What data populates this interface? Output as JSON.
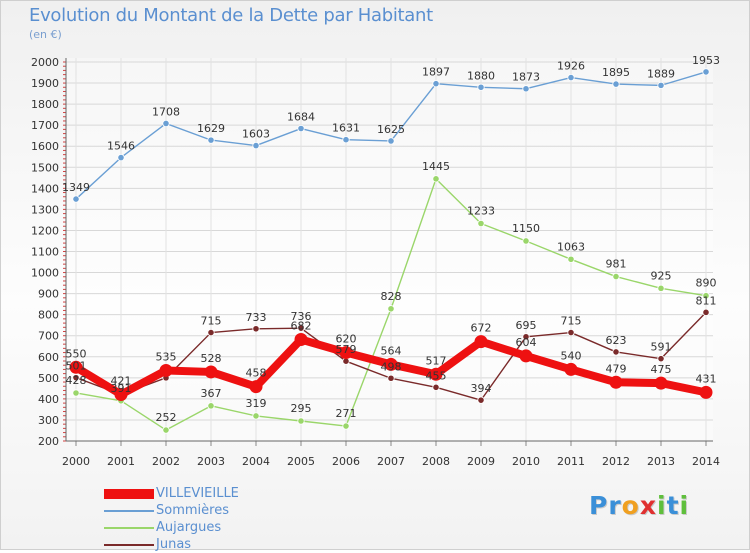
{
  "title": "Evolution du Montant de la Dette par Habitant",
  "subtitle": "(en €)",
  "logo": {
    "letters": [
      {
        "ch": "P",
        "color": "#3a8fd8"
      },
      {
        "ch": "r",
        "color": "#3a8fd8"
      },
      {
        "ch": "o",
        "color": "#f0a020"
      },
      {
        "ch": "x",
        "color": "#e03030"
      },
      {
        "ch": "i",
        "color": "#5fbf3c"
      },
      {
        "ch": "t",
        "color": "#3a8fd8"
      },
      {
        "ch": "i",
        "color": "#5fbf3c"
      }
    ]
  },
  "chart_data": {
    "type": "line",
    "title": "Evolution du Montant de la Dette par Habitant",
    "subtitle": "(en €)",
    "x": [
      "2000",
      "2001",
      "2002",
      "2003",
      "2004",
      "2005",
      "2006",
      "2007",
      "2008",
      "2009",
      "2010",
      "2011",
      "2012",
      "2013",
      "2014"
    ],
    "ylim": [
      200,
      2000
    ],
    "yticks": [
      200,
      300,
      400,
      500,
      600,
      700,
      800,
      900,
      1000,
      1100,
      1200,
      1300,
      1400,
      1500,
      1600,
      1700,
      1800,
      1900,
      2000
    ],
    "grid": true,
    "legend_position": "bottom-left",
    "series": [
      {
        "name": "VILLEVIEILLE",
        "color": "#ee1111",
        "values": [
          550,
          421,
          535,
          528,
          458,
          682,
          620,
          564,
          517,
          672,
          604,
          540,
          479,
          475,
          431
        ],
        "labels": [
          "550",
          "421",
          "535",
          "528",
          "458",
          "682",
          "620",
          "564",
          "517",
          "672",
          "604",
          "540",
          "479",
          "475",
          "431"
        ]
      },
      {
        "name": "Sommières",
        "color": "#6a9fd4",
        "values": [
          1349,
          1546,
          1708,
          1629,
          1603,
          1684,
          1631,
          1625,
          1897,
          1880,
          1873,
          1926,
          1895,
          1889,
          1953
        ],
        "labels": [
          "1349",
          "1546",
          "1708",
          "1629",
          "1603",
          "1684",
          "1631",
          "1625",
          "1897",
          "1880",
          "1873",
          "1926",
          "1895",
          "1889",
          "1953"
        ]
      },
      {
        "name": "Aujargues",
        "color": "#9ad66a",
        "values": [
          428,
          391,
          252,
          367,
          319,
          295,
          271,
          828,
          1445,
          1233,
          1150,
          1063,
          981,
          925,
          890
        ],
        "labels": [
          "428",
          "391",
          "252",
          "367",
          "319",
          "295",
          "271",
          "828",
          "1445",
          "1233",
          "1150",
          "1063",
          "981",
          "925",
          "890"
        ]
      },
      {
        "name": "Junas",
        "color": "#7a2a2a",
        "values": [
          501,
          421,
          500,
          715,
          733,
          736,
          579,
          498,
          455,
          394,
          695,
          715,
          623,
          591,
          811
        ],
        "labels": [
          "501",
          "",
          "",
          "715",
          "733",
          "736",
          "579",
          "498",
          "455",
          "394",
          "695",
          "715",
          "623",
          "591",
          "811"
        ]
      }
    ]
  }
}
